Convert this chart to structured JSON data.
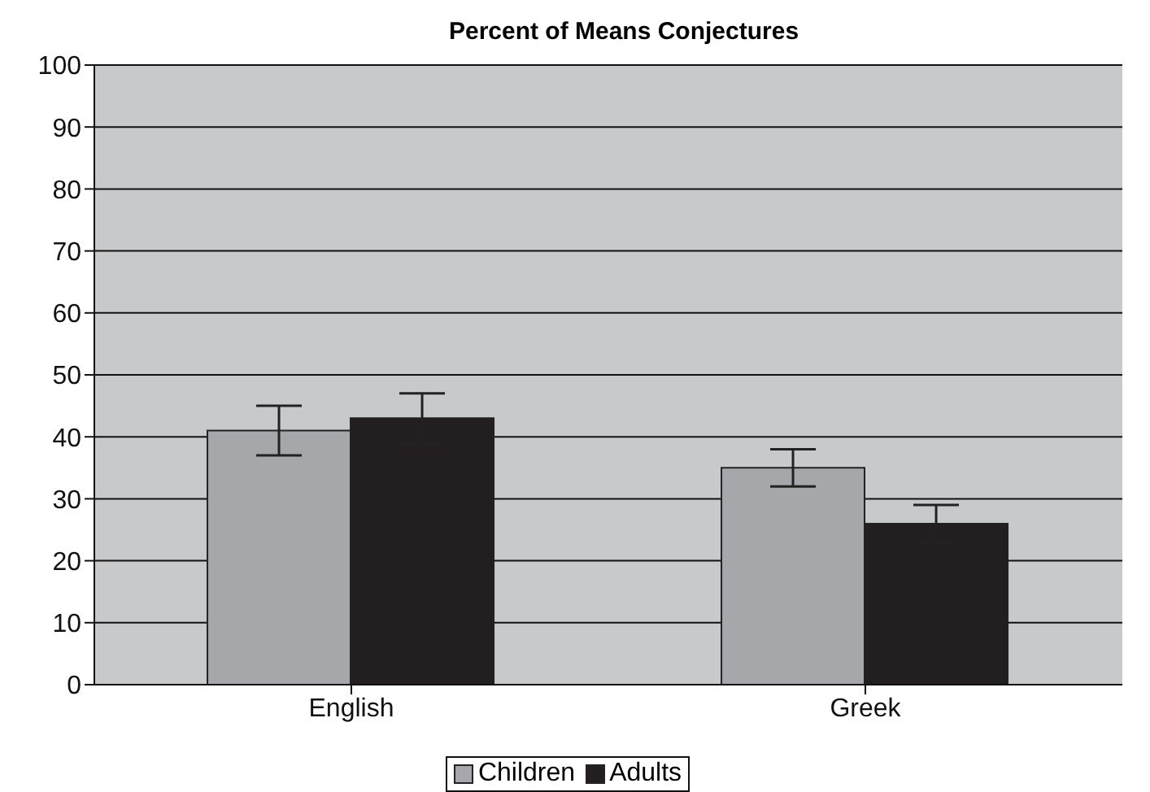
{
  "chart_data": {
    "type": "bar",
    "title": "Percent of Means Conjectures",
    "categories": [
      "English",
      "Greek"
    ],
    "series": [
      {
        "name": "Children",
        "color": "#a6a7aa",
        "values": [
          41,
          35
        ],
        "errors": [
          4,
          3
        ]
      },
      {
        "name": "Adults",
        "color": "#231f20",
        "values": [
          43,
          26
        ],
        "errors": [
          4,
          3
        ]
      }
    ],
    "ylim": [
      0,
      100
    ],
    "yticks": [
      0,
      10,
      20,
      30,
      40,
      50,
      60,
      70,
      80,
      90,
      100
    ],
    "grid": "y",
    "legend": "bottom"
  }
}
